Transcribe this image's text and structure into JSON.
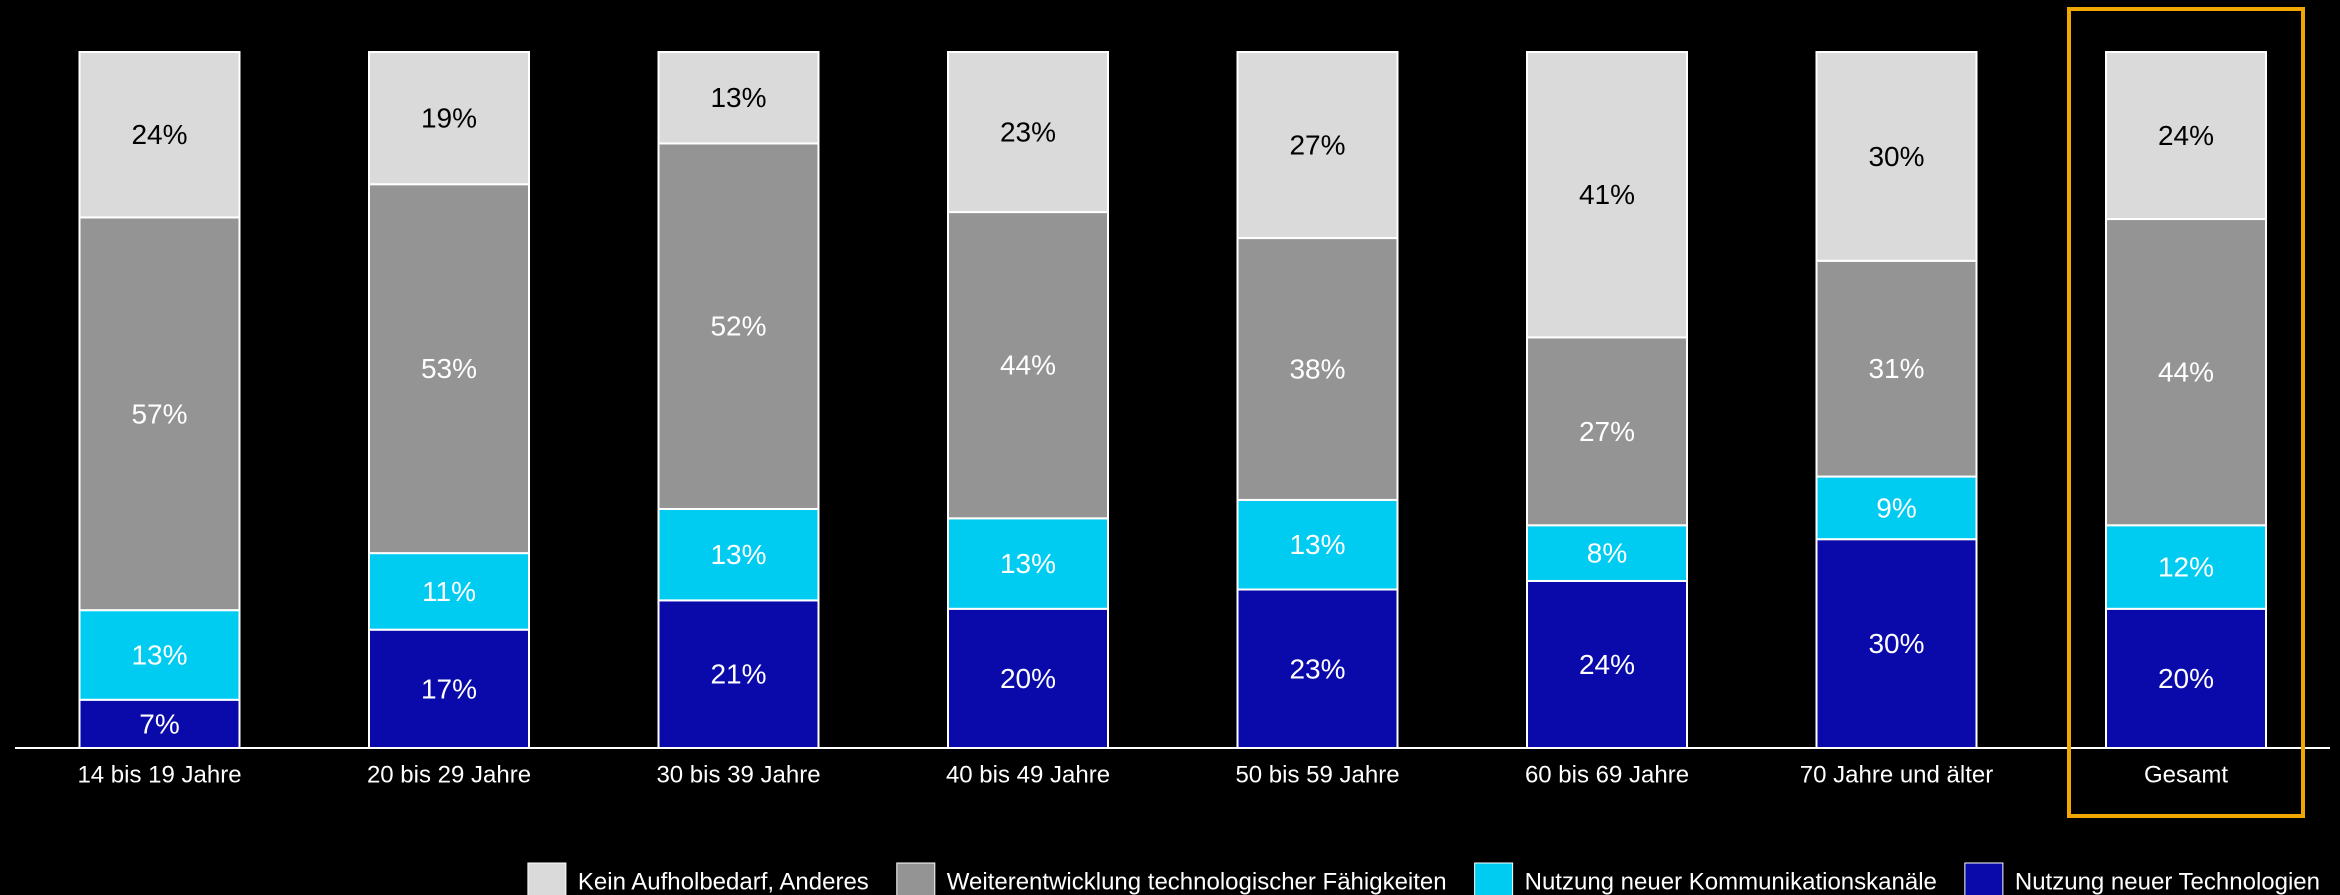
{
  "chart_data": {
    "type": "bar",
    "stacked": true,
    "percent": true,
    "categories": [
      "14 bis 19 Jahre",
      "20 bis 29 Jahre",
      "30 bis 39 Jahre",
      "40 bis 49 Jahre",
      "50 bis 59 Jahre",
      "60 bis 69 Jahre",
      "70 Jahre und älter",
      "Gesamt"
    ],
    "highlighted_category": "Gesamt",
    "highlight_color": "#F0A800",
    "series": [
      {
        "name": "Nutzung neuer Technologien",
        "color": "#0A0AAA",
        "label_color": "#FFFFFF",
        "values": [
          7,
          17,
          21,
          20,
          23,
          24,
          30,
          20
        ]
      },
      {
        "name": "Nutzung neuer Kommunikationskanäle",
        "color": "#00CCF2",
        "label_color": "#FFFFFF",
        "values": [
          13,
          11,
          13,
          13,
          13,
          8,
          9,
          12
        ]
      },
      {
        "name": "Weiterentwicklung technologischer Fähigkeiten",
        "color": "#949494",
        "label_color": "#FFFFFF",
        "values": [
          57,
          53,
          52,
          44,
          38,
          27,
          31,
          44
        ]
      },
      {
        "name": "Kein Aufholbedarf, Anderes",
        "color": "#DADADA",
        "label_color": "#000000",
        "values": [
          24,
          19,
          13,
          23,
          27,
          41,
          30,
          24
        ]
      }
    ],
    "legend": {
      "position": "bottom-right",
      "order": [
        "Kein Aufholbedarf, Anderes",
        "Weiterentwicklung technologischer Fähigkeiten",
        "Nutzung neuer Kommunikationskanäle",
        "Nutzung neuer Technologien"
      ]
    },
    "value_suffix": "%",
    "title": "",
    "xlabel": "",
    "ylabel": "",
    "grid": false
  }
}
